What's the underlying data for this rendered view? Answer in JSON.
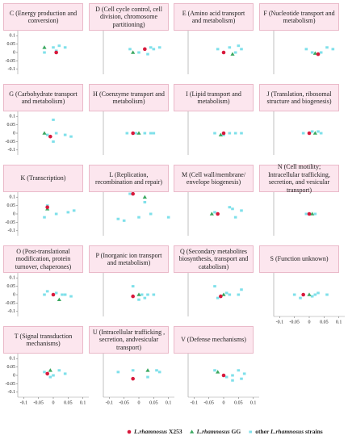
{
  "legend": [
    {
      "species": "L.rhamnosus",
      "suffix": "X253",
      "color": "#d8193c",
      "marker": "circle"
    },
    {
      "species": "L.rhamnosus",
      "suffix": "GG",
      "color": "#3aa860",
      "marker": "triangle"
    },
    {
      "prefix": "other",
      "species": "L.rhamnosus",
      "suffix": "strains",
      "color": "#7fe0ea",
      "marker": "square"
    }
  ],
  "chart_data": [
    {
      "type": "scatter",
      "title": "C (Energy production and conversion)",
      "xlim": [
        -0.12,
        0.12
      ],
      "ylim": [
        -0.13,
        0.13
      ],
      "yticks": [
        0.1,
        0.05,
        0,
        -0.05,
        -0.1
      ],
      "series": [
        {
          "x": [
            0.01
          ],
          "values": [
            0
          ]
        },
        {
          "x": [
            -0.03
          ],
          "values": [
            0.03
          ]
        },
        {
          "x": [
            0,
            0.02,
            0.04,
            -0.03,
            0.01
          ],
          "values": [
            0.03,
            0.04,
            0.03,
            0,
            0.01
          ]
        }
      ]
    },
    {
      "type": "scatter",
      "title": "D (Cell cycle control, cell division, chromosome partitioning)",
      "xlim": [
        -0.12,
        0.12
      ],
      "ylim": [
        -0.13,
        0.13
      ],
      "series": [
        {
          "x": [
            0.02
          ],
          "values": [
            0.02
          ]
        },
        {
          "x": [
            -0.02
          ],
          "values": [
            0
          ]
        },
        {
          "x": [
            -0.03,
            0,
            0.03,
            0.05,
            0.07,
            0.04
          ],
          "values": [
            0.02,
            0,
            -0.01,
            0.02,
            0.03,
            0.03
          ]
        }
      ]
    },
    {
      "type": "scatter",
      "title": "E (Amino acid transport and metabolism)",
      "xlim": [
        -0.12,
        0.12
      ],
      "ylim": [
        -0.13,
        0.13
      ],
      "series": [
        {
          "x": [
            0
          ],
          "values": [
            0
          ]
        },
        {
          "x": [
            0.03
          ],
          "values": [
            -0.01
          ]
        },
        {
          "x": [
            -0.02,
            0.04,
            0.06,
            0.02,
            0.05
          ],
          "values": [
            0.02,
            0,
            0.02,
            0.03,
            0.04
          ]
        }
      ]
    },
    {
      "type": "scatter",
      "title": "F (Nucleotide transport and metabolism)",
      "xlim": [
        -0.12,
        0.12
      ],
      "ylim": [
        -0.13,
        0.13
      ],
      "series": [
        {
          "x": [
            0.03
          ],
          "values": [
            -0.01
          ]
        },
        {
          "x": [
            0.02
          ],
          "values": [
            -0.005
          ]
        },
        {
          "x": [
            -0.01,
            0.01,
            0.04,
            0.06,
            0.08
          ],
          "values": [
            0.02,
            0,
            0,
            0.03,
            0.02
          ]
        }
      ]
    },
    {
      "type": "scatter",
      "title": "G (Carbohydrate transport and metabolism)",
      "xlim": [
        -0.12,
        0.12
      ],
      "ylim": [
        -0.13,
        0.13
      ],
      "yticks": [
        0.1,
        0.05,
        0,
        -0.05,
        -0.1
      ],
      "series": [
        {
          "x": [
            -0.01
          ],
          "values": [
            -0.02
          ]
        },
        {
          "x": [
            -0.03
          ],
          "values": [
            0
          ]
        },
        {
          "x": [
            0,
            -0.02,
            0.04,
            0.06,
            0,
            0.01
          ],
          "values": [
            0.08,
            -0.01,
            -0.01,
            -0.02,
            -0.05,
            0
          ]
        }
      ]
    },
    {
      "type": "scatter",
      "title": "H (Coenzyme transport and metabolism)",
      "xlim": [
        -0.12,
        0.12
      ],
      "ylim": [
        -0.13,
        0.13
      ],
      "series": [
        {
          "x": [
            -0.02
          ],
          "values": [
            0
          ]
        },
        {
          "x": [
            0
          ],
          "values": [
            0
          ]
        },
        {
          "x": [
            -0.04,
            -0.01,
            0.02,
            0.04,
            0.05
          ],
          "values": [
            0,
            0,
            0,
            0,
            0
          ]
        }
      ]
    },
    {
      "type": "scatter",
      "title": "I (Lipid transport and metabolism)",
      "xlim": [
        -0.12,
        0.12
      ],
      "ylim": [
        -0.13,
        0.13
      ],
      "series": [
        {
          "x": [
            0
          ],
          "values": [
            0
          ]
        },
        {
          "x": [
            -0.01
          ],
          "values": [
            -0.01
          ]
        },
        {
          "x": [
            -0.03,
            0.02,
            0.04,
            0.06,
            0
          ],
          "values": [
            0,
            0,
            0,
            0,
            -0.01
          ]
        }
      ]
    },
    {
      "type": "scatter",
      "title": "J (Translation, ribosomal structure and biogenesis)",
      "xlim": [
        -0.12,
        0.12
      ],
      "ylim": [
        -0.13,
        0.13
      ],
      "series": [
        {
          "x": [
            0
          ],
          "values": [
            0
          ]
        },
        {
          "x": [
            0.02
          ],
          "values": [
            0
          ]
        },
        {
          "x": [
            -0.02,
            0.01,
            0.04,
            0.03
          ],
          "values": [
            0,
            0.01,
            0,
            0.01
          ]
        }
      ]
    },
    {
      "type": "scatter",
      "title": "K (Transcription)",
      "xlim": [
        -0.12,
        0.12
      ],
      "ylim": [
        -0.13,
        0.13
      ],
      "yticks": [
        0.1,
        0.05,
        0,
        -0.05,
        -0.1
      ],
      "series": [
        {
          "x": [
            -0.02
          ],
          "values": [
            0.04
          ]
        },
        {
          "x": [
            -0.02
          ],
          "values": [
            0.03
          ]
        },
        {
          "x": [
            -0.03,
            0.01,
            0.05,
            0.07,
            -0.02
          ],
          "values": [
            -0.02,
            0,
            0.01,
            0.02,
            0.05
          ]
        }
      ]
    },
    {
      "type": "scatter",
      "title": "L (Replication, recombination and repair)",
      "xlim": [
        -0.12,
        0.12
      ],
      "ylim": [
        -0.13,
        0.13
      ],
      "series": [
        {
          "x": [
            -0.02
          ],
          "values": [
            0.12
          ]
        },
        {
          "x": [
            0.02
          ],
          "values": [
            0.1
          ]
        },
        {
          "x": [
            -0.07,
            -0.05,
            0,
            0.04,
            0.1,
            0.02,
            -0.03
          ],
          "values": [
            -0.03,
            -0.04,
            -0.02,
            0,
            -0.02,
            0.07,
            0.12
          ]
        }
      ]
    },
    {
      "type": "scatter",
      "title": "M (Cell wall/membrane/ envelope biogenesis)",
      "xlim": [
        -0.12,
        0.12
      ],
      "ylim": [
        -0.13,
        0.13
      ],
      "series": [
        {
          "x": [
            -0.02
          ],
          "values": [
            0
          ]
        },
        {
          "x": [
            -0.04
          ],
          "values": [
            0
          ]
        },
        {
          "x": [
            -0.03,
            0.02,
            0.03,
            0.06,
            0.04
          ],
          "values": [
            0.01,
            0.04,
            0.03,
            0.02,
            -0.02
          ]
        }
      ]
    },
    {
      "type": "scatter",
      "title": "N (Cell motility; Intracellular trafficking, secretion, and vesicular transport)",
      "xlim": [
        -0.12,
        0.12
      ],
      "ylim": [
        -0.13,
        0.13
      ],
      "series": [
        {
          "x": [
            0
          ],
          "values": [
            0
          ]
        },
        {
          "x": [
            0.01
          ],
          "values": [
            0
          ]
        },
        {
          "x": [
            -0.01,
            0.02
          ],
          "values": [
            0,
            0
          ]
        }
      ]
    },
    {
      "type": "scatter",
      "title": "O (Post-translational modification, protein turnover, chaperones)",
      "xlim": [
        -0.12,
        0.12
      ],
      "ylim": [
        -0.13,
        0.13
      ],
      "yticks": [
        0.1,
        0.05,
        0,
        -0.05,
        -0.1
      ],
      "series": [
        {
          "x": [
            0
          ],
          "values": [
            0
          ]
        },
        {
          "x": [
            0.02
          ],
          "values": [
            -0.03
          ]
        },
        {
          "x": [
            -0.03,
            -0.02,
            0.01,
            0.03,
            0.04,
            0.06
          ],
          "values": [
            0,
            0.02,
            0.01,
            0,
            0,
            -0.01
          ]
        }
      ]
    },
    {
      "type": "scatter",
      "title": "P (Inorganic ion transport and metabolism)",
      "xlim": [
        -0.12,
        0.12
      ],
      "ylim": [
        -0.13,
        0.13
      ],
      "series": [
        {
          "x": [
            -0.02
          ],
          "values": [
            -0.01
          ]
        },
        {
          "x": [
            0
          ],
          "values": [
            0
          ]
        },
        {
          "x": [
            -0.02,
            0.02,
            0.01,
            0.03,
            0,
            0.05
          ],
          "values": [
            0.05,
            -0.02,
            0,
            0,
            -0.03,
            0
          ]
        }
      ]
    },
    {
      "type": "scatter",
      "title": "Q (Secondary metabolites biosynthesis, transport and catabolism)",
      "xlim": [
        -0.12,
        0.12
      ],
      "ylim": [
        -0.13,
        0.13
      ],
      "series": [
        {
          "x": [
            -0.01
          ],
          "values": [
            -0.01
          ]
        },
        {
          "x": [
            0
          ],
          "values": [
            0
          ]
        },
        {
          "x": [
            -0.03,
            -0.02,
            0.02,
            0.05,
            0.06,
            0.01
          ],
          "values": [
            0.05,
            -0.02,
            0,
            0,
            0.03,
            0.01
          ]
        }
      ]
    },
    {
      "type": "scatter",
      "title": "S (Function unknown)",
      "xlim": [
        -0.12,
        0.12
      ],
      "ylim": [
        -0.13,
        0.13
      ],
      "xticks": [
        -0.1,
        -0.05,
        0,
        0.05,
        0.1
      ],
      "series": [
        {
          "x": [
            -0.02
          ],
          "values": [
            0
          ]
        },
        {
          "x": [
            0
          ],
          "values": [
            0
          ]
        },
        {
          "x": [
            -0.05,
            -0.03,
            0.02,
            0.03,
            0.06,
            0.01
          ],
          "values": [
            0,
            -0.02,
            0,
            0.01,
            0,
            -0.01
          ]
        }
      ]
    },
    {
      "type": "scatter",
      "title": "T (Signal transduction mechanisms)",
      "xlim": [
        -0.12,
        0.12
      ],
      "ylim": [
        -0.13,
        0.13
      ],
      "yticks": [
        0.1,
        0.05,
        0,
        -0.05,
        -0.1
      ],
      "xticks": [
        -0.1,
        -0.05,
        0,
        0.05,
        0.1
      ],
      "series": [
        {
          "x": [
            -0.02
          ],
          "values": [
            0.01
          ]
        },
        {
          "x": [
            -0.01
          ],
          "values": [
            0.03
          ]
        },
        {
          "x": [
            -0.03,
            -0.01,
            0.02,
            0.04,
            0
          ],
          "values": [
            0.02,
            -0.01,
            0.03,
            0.01,
            0
          ]
        }
      ]
    },
    {
      "type": "scatter",
      "title": "U (Intracellular trafficking , secretion, andvesicular transport)",
      "xlim": [
        -0.12,
        0.12
      ],
      "ylim": [
        -0.13,
        0.13
      ],
      "xticks": [
        -0.1,
        -0.05,
        0,
        0.05,
        0.1
      ],
      "series": [
        {
          "x": [
            -0.02
          ],
          "values": [
            -0.02
          ]
        },
        {
          "x": [
            0.03
          ],
          "values": [
            0.03
          ]
        },
        {
          "x": [
            -0.07,
            -0.02,
            0.03,
            0.07,
            0.06
          ],
          "values": [
            0.02,
            0.03,
            -0.01,
            0.02,
            0.03
          ]
        }
      ]
    },
    {
      "type": "scatter",
      "title": "V (Defense mechanisms)",
      "xlim": [
        -0.12,
        0.12
      ],
      "ylim": [
        -0.13,
        0.13
      ],
      "xticks": [
        -0.1,
        -0.05,
        0,
        0.05,
        0.1
      ],
      "series": [
        {
          "x": [
            0
          ],
          "values": [
            0
          ]
        },
        {
          "x": [
            -0.02
          ],
          "values": [
            0.02
          ]
        },
        {
          "x": [
            -0.03,
            0.01,
            0.03,
            0.05,
            0.07,
            0.06,
            0.03
          ],
          "values": [
            0.03,
            -0.01,
            0,
            0.03,
            0.01,
            -0.02,
            -0.03
          ]
        }
      ]
    }
  ]
}
